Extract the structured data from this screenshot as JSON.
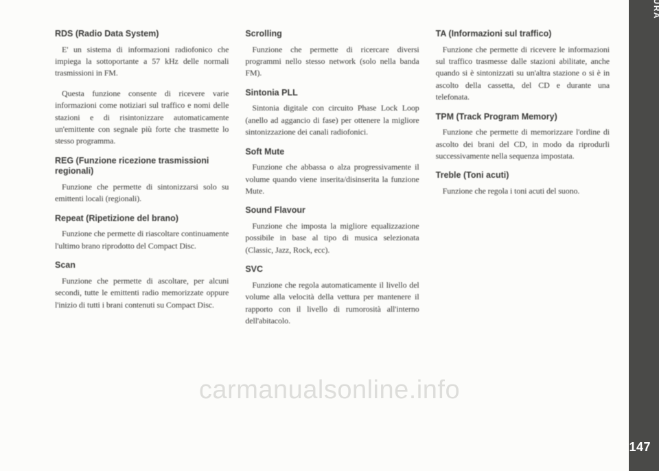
{
  "sidebar": {
    "label": "CONOSCENZA DELLA VETTURA"
  },
  "pagenum": "147",
  "watermark": "carmanualsonline.info",
  "columns": [
    [
      {
        "t": "h",
        "v": "RDS (Radio Data System)"
      },
      {
        "t": "p",
        "v": "E' un sistema di informazioni radiofonico che impiega la sottoportante a 57 kHz delle normali trasmissioni in FM."
      },
      {
        "t": "p",
        "v": "Questa funzione consente di ricevere varie informazioni come notiziari sul traffico e nomi delle stazioni e di risintonizzare automaticamente un'emittente con segnale più forte che trasmette lo stesso programma."
      },
      {
        "t": "h",
        "v": "REG (Funzione ricezione trasmissioni regionali)"
      },
      {
        "t": "p",
        "v": "Funzione che permette di sintonizzarsi solo su emittenti locali (regionali)."
      },
      {
        "t": "h",
        "v": "Repeat (Ripetizione del brano)"
      },
      {
        "t": "p",
        "v": "Funzione che permette di riascoltare continuamente l'ultimo brano riprodotto del Compact Disc."
      },
      {
        "t": "h",
        "v": "Scan"
      },
      {
        "t": "p",
        "v": "Funzione che permette di ascoltare, per alcuni secondi, tutte le emittenti radio memorizzate oppure l'inizio di tutti i brani contenuti su Compact Disc."
      }
    ],
    [
      {
        "t": "h",
        "v": "Scrolling"
      },
      {
        "t": "p",
        "v": "Funzione che permette di ricercare diversi programmi nello stesso network (solo nella banda FM)."
      },
      {
        "t": "h",
        "v": "Sintonia PLL"
      },
      {
        "t": "p",
        "v": "Sintonia digitale con circuito Phase Lock Loop (anello ad aggancio di fase) per ottenere la migliore sintonizzazione dei canali radiofonici."
      },
      {
        "t": "h",
        "v": "Soft Mute"
      },
      {
        "t": "p",
        "v": "Funzione che abbassa o alza progressivamente il volume quando viene inserita/disinserita la funzione Mute."
      },
      {
        "t": "h",
        "v": "Sound Flavour"
      },
      {
        "t": "p",
        "v": "Funzione che imposta la migliore equalizzazione possibile in base al tipo di musica selezionata (Classic, Jazz, Rock, ecc)."
      },
      {
        "t": "h",
        "v": "SVC"
      },
      {
        "t": "p",
        "v": "Funzione che regola automaticamente il livello del volume alla velocità della vettura per mantenere il rapporto con il livello di rumorosità all'interno dell'abitacolo."
      }
    ],
    [
      {
        "t": "h",
        "v": "TA (Informazioni sul traffico)"
      },
      {
        "t": "p",
        "v": "Funzione che permette di ricevere le informazioni sul traffico trasmesse dalle stazioni abilitate, anche quando si è sintonizzati su un'altra stazione o si è in ascolto della cassetta, del CD e durante una telefonata."
      },
      {
        "t": "h",
        "v": "TPM (Track Program Memory)"
      },
      {
        "t": "p",
        "v": "Funzione che permette di memorizzare l'ordine di ascolto dei brani del CD, in modo da riprodurli successivamente nella sequenza impostata."
      },
      {
        "t": "h",
        "v": "Treble (Toni acuti)"
      },
      {
        "t": "p",
        "v": "Funzione che regola i toni acuti del suono."
      }
    ]
  ]
}
